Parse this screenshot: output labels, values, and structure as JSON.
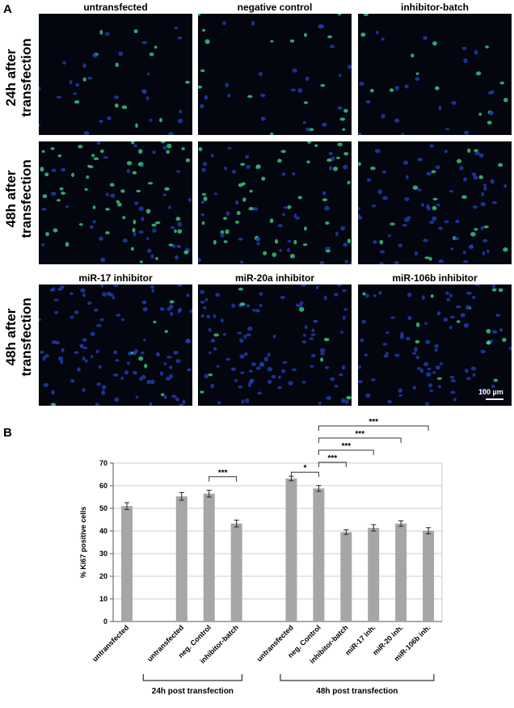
{
  "panel_a": {
    "letter": "A",
    "top_columns": [
      "untransfected",
      "negative control",
      "inhibitor-batch"
    ],
    "bottom_columns": [
      "miR-17 inhibitor",
      "miR-20a inhibitor",
      "miR-106b inhibitor"
    ],
    "row_labels": [
      [
        "24h after",
        "transfection"
      ],
      [
        "48h after",
        "transfection"
      ],
      [
        "48h after",
        "transfection"
      ]
    ],
    "scale_bar": "100 µm",
    "colors": {
      "background": "#03050f",
      "nuclei": "#1f3fb0",
      "ki67": "#39e08a"
    }
  },
  "panel_b": {
    "letter": "B",
    "groups": [
      "24h post transfection",
      "48h post transfection"
    ]
  },
  "chart_data": {
    "type": "bar",
    "ylabel": "% Ki67 positive cells",
    "ylim": [
      0,
      70
    ],
    "yticks": [
      0,
      10,
      20,
      30,
      40,
      50,
      60,
      70
    ],
    "grid": true,
    "bar_color": "#a6a6a6",
    "categories": [
      "untransfected",
      "",
      "untransfected",
      "neg. Control",
      "inhibitor-batch",
      "",
      "untransfected",
      "neg. Control",
      "inhibitor-batch",
      "miR-17 inh.",
      "miR-20 inh.",
      "miR-106b inh."
    ],
    "values": [
      51,
      null,
      55.3,
      56.5,
      43.3,
      null,
      63.2,
      58.8,
      39.5,
      41.4,
      43.3,
      40.1
    ],
    "errors": [
      1.5,
      null,
      1.7,
      1.5,
      1.5,
      null,
      1.0,
      1.3,
      1.0,
      1.4,
      1.2,
      1.4
    ],
    "significance": [
      {
        "from": 3,
        "to": 4,
        "label": "***"
      },
      {
        "from": 6,
        "to": 7,
        "label": "*"
      },
      {
        "from": 7,
        "to": 8,
        "label": "***"
      },
      {
        "from": 7,
        "to": 9,
        "label": "***"
      },
      {
        "from": 7,
        "to": 10,
        "label": "***"
      },
      {
        "from": 7,
        "to": 11,
        "label": "***"
      }
    ],
    "group_brackets": [
      {
        "from": 1,
        "to": 4,
        "label": "24h post transfection"
      },
      {
        "from": 6,
        "to": 11,
        "label": "48h post transfection"
      }
    ]
  }
}
